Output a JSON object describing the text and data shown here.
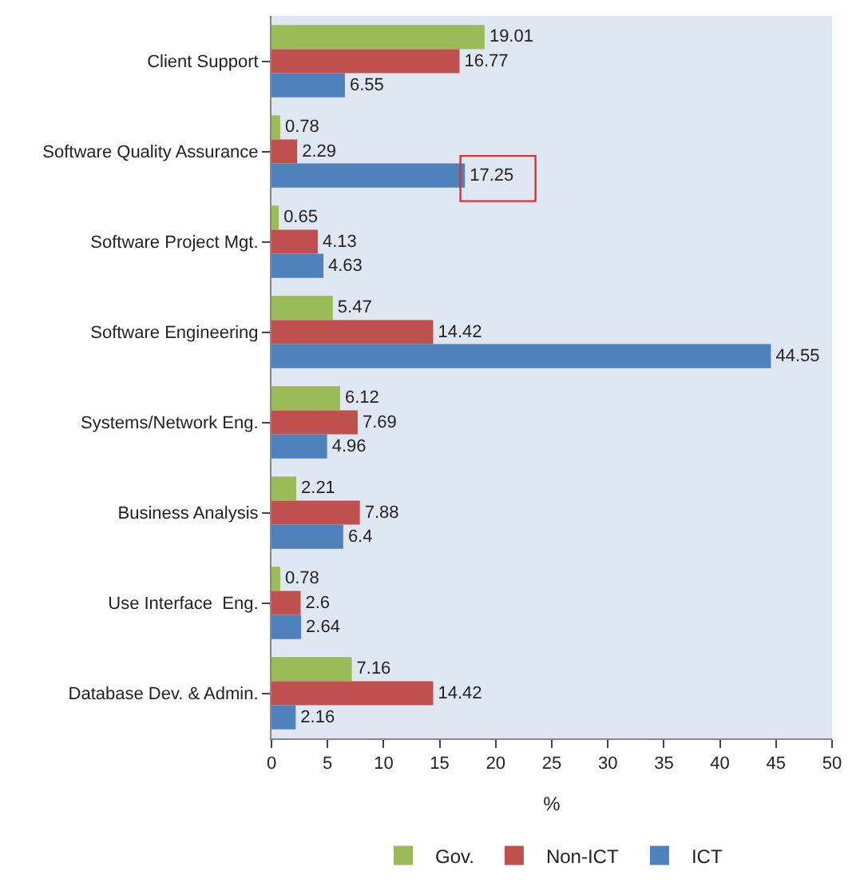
{
  "chart_data": {
    "type": "bar",
    "orientation": "horizontal",
    "xlabel": "%",
    "categories": [
      "Client Support",
      "Software Quality Assurance",
      "Software Project Mgt.",
      "Software Engineering",
      "Systems/Network Eng.",
      "Business Analysis",
      "Use Interface  Eng.",
      "Database Dev. & Admin."
    ],
    "series": [
      {
        "name": "Gov.",
        "color": "#9bbb59",
        "values": [
          19.01,
          0.78,
          0.65,
          5.47,
          6.12,
          2.21,
          0.78,
          7.16
        ]
      },
      {
        "name": "Non-ICT",
        "color": "#c0504d",
        "values": [
          16.77,
          2.29,
          4.13,
          14.42,
          7.69,
          7.88,
          2.6,
          14.42
        ]
      },
      {
        "name": "ICT",
        "color": "#4f81bd",
        "values": [
          6.55,
          17.25,
          4.63,
          44.55,
          4.96,
          6.4,
          2.64,
          2.16
        ]
      }
    ],
    "xlim": [
      0,
      50
    ],
    "xticks": [
      0,
      5,
      10,
      15,
      20,
      25,
      30,
      35,
      40,
      45,
      50
    ],
    "data_labels": true,
    "grid": false,
    "legend": "bottom"
  }
}
